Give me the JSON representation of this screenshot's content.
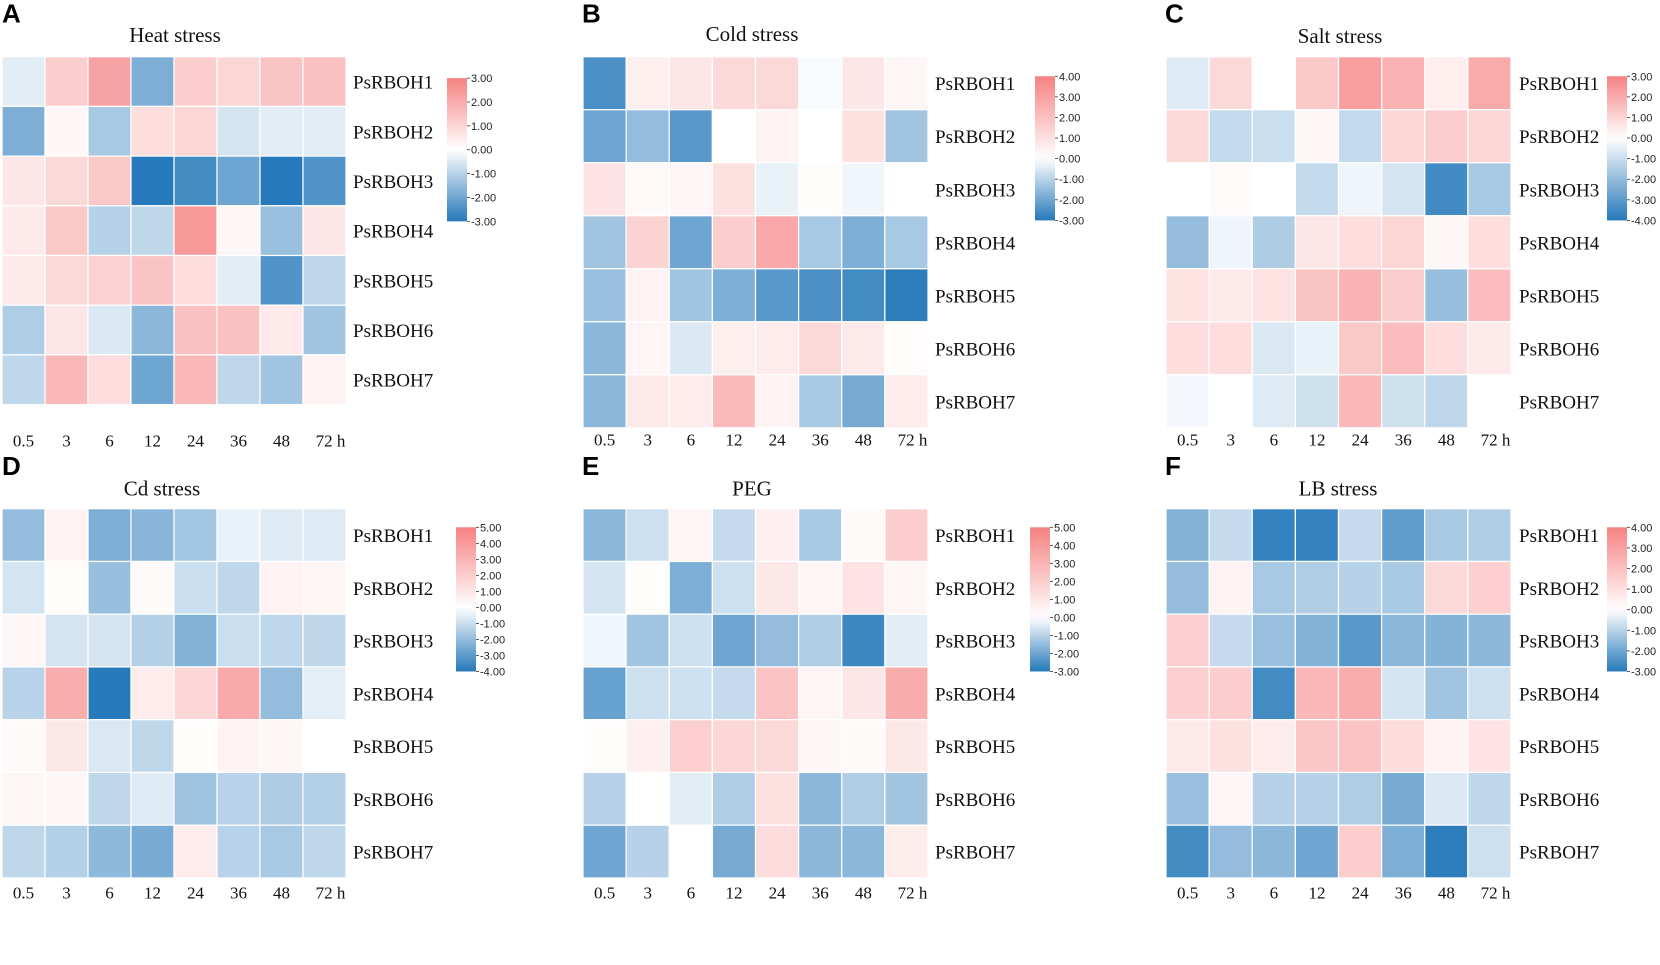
{
  "chart_data": [
    {
      "type": "heatmap",
      "letter": "A",
      "title": "Heat stress",
      "rows": [
        "PsRBOH1",
        "PsRBOH2",
        "PsRBOH3",
        "PsRBOH4",
        "PsRBOH5",
        "PsRBOH6",
        "PsRBOH7"
      ],
      "columns": [
        "0.5",
        "3",
        "6",
        "12",
        "24",
        "36",
        "48",
        "72 h"
      ],
      "legend_ticks": [
        "3.00",
        "2.00",
        "1.00",
        "0.00",
        "-1.00",
        "-2.00",
        "-3.00"
      ],
      "scale_min": -3,
      "scale_max": 3,
      "values": [
        [
          -0.4,
          1.2,
          2.2,
          -1.8,
          1.2,
          1.0,
          1.4,
          1.5
        ],
        [
          -1.8,
          0.2,
          -1.2,
          0.8,
          1.0,
          -0.6,
          -0.4,
          -0.4
        ],
        [
          0.6,
          0.9,
          1.3,
          -3.0,
          -2.6,
          -2.0,
          -3.0,
          -2.4
        ],
        [
          0.5,
          1.3,
          -1.0,
          -0.9,
          2.4,
          0.2,
          -1.4,
          0.6
        ],
        [
          0.5,
          0.9,
          1.1,
          1.4,
          0.8,
          -0.4,
          -2.4,
          -0.9
        ],
        [
          -1.1,
          0.6,
          -0.5,
          -1.6,
          1.5,
          1.5,
          0.5,
          -1.3
        ],
        [
          -0.9,
          1.7,
          0.8,
          -2.0,
          1.7,
          -0.9,
          -1.3,
          0.3
        ]
      ]
    },
    {
      "type": "heatmap",
      "letter": "B",
      "title": "Cold stress",
      "rows": [
        "PsRBOH1",
        "PsRBOH2",
        "PsRBOH3",
        "PsRBOH4",
        "PsRBOH5",
        "PsRBOH6",
        "PsRBOH7"
      ],
      "columns": [
        "0.5",
        "3",
        "6",
        "12",
        "24",
        "36",
        "48",
        "72 h"
      ],
      "legend_ticks": [
        "4.00",
        "3.00",
        "2.00",
        "1.00",
        "0.00",
        "-1.00",
        "-2.00",
        "-3.00"
      ],
      "scale_min": -3,
      "scale_max": 4,
      "values": [
        [
          -2.5,
          0.5,
          0.8,
          1.2,
          1.2,
          -0.1,
          0.8,
          0.3
        ],
        [
          -2.0,
          -1.5,
          -2.3,
          0.0,
          0.4,
          0.0,
          1.0,
          -1.3
        ],
        [
          0.9,
          0.2,
          0.3,
          1.0,
          -0.3,
          0.1,
          -0.2,
          0.0
        ],
        [
          -1.3,
          1.4,
          -2.0,
          1.6,
          2.8,
          -1.2,
          -1.8,
          -1.2
        ],
        [
          -1.4,
          0.4,
          -1.3,
          -1.8,
          -2.3,
          -2.5,
          -2.6,
          -2.9
        ],
        [
          -1.6,
          0.3,
          -0.5,
          0.5,
          0.6,
          1.2,
          0.7,
          0.1
        ],
        [
          -1.6,
          0.7,
          0.6,
          2.2,
          0.4,
          -1.2,
          -1.9,
          0.6
        ]
      ]
    },
    {
      "type": "heatmap",
      "letter": "C",
      "title": "Salt stress",
      "rows": [
        "PsRBOH1",
        "PsRBOH2",
        "PsRBOH3",
        "PsRBOH4",
        "PsRBOH5",
        "PsRBOH6",
        "PsRBOH7"
      ],
      "columns": [
        "0.5",
        "3",
        "6",
        "12",
        "24",
        "36",
        "48",
        "72 h"
      ],
      "legend_ticks": [
        "3.00",
        "2.00",
        "1.00",
        "0.00",
        "-1.00",
        "-2.00",
        "-3.00",
        "-4.00"
      ],
      "scale_min": -4,
      "scale_max": 3,
      "values": [
        [
          -0.6,
          0.9,
          0.0,
          1.3,
          2.3,
          1.8,
          0.4,
          2.0
        ],
        [
          0.9,
          -1.1,
          -1.0,
          0.2,
          -1.1,
          1.0,
          1.2,
          1.0
        ],
        [
          0.0,
          0.1,
          0.0,
          -1.1,
          -0.3,
          -0.8,
          -3.5,
          -1.6
        ],
        [
          -2.0,
          -0.3,
          -1.5,
          0.6,
          0.8,
          1.0,
          0.2,
          0.8
        ],
        [
          0.7,
          0.5,
          0.7,
          1.4,
          1.8,
          1.2,
          -1.9,
          1.6
        ],
        [
          0.8,
          0.8,
          -0.7,
          -0.4,
          1.3,
          1.6,
          0.8,
          0.5
        ],
        [
          -0.2,
          0.0,
          -0.6,
          -0.9,
          1.7,
          -0.9,
          -1.2,
          0.0
        ]
      ]
    },
    {
      "type": "heatmap",
      "letter": "D",
      "title": "Cd stress",
      "rows": [
        "PsRBOH1",
        "PsRBOH2",
        "PsRBOH3",
        "PsRBOH4",
        "PsRBOH5",
        "PsRBOH6",
        "PsRBOH7"
      ],
      "columns": [
        "0.5",
        "3",
        "6",
        "12",
        "24",
        "36",
        "48",
        "72 h"
      ],
      "legend_ticks": [
        "5.00",
        "4.00",
        "3.00",
        "2.00",
        "1.00",
        "0.00",
        "-1.00",
        "-2.00",
        "-3.00",
        "-4.00"
      ],
      "scale_min": -4,
      "scale_max": 5,
      "values": [
        [
          -2.0,
          0.5,
          -2.4,
          -2.2,
          -1.7,
          -0.4,
          -0.6,
          -0.6
        ],
        [
          -0.8,
          0.1,
          -1.9,
          0.2,
          -1.0,
          -1.2,
          0.5,
          0.4
        ],
        [
          0.3,
          -0.8,
          -0.8,
          -1.4,
          -2.3,
          -1.0,
          -1.2,
          -1.2
        ],
        [
          -1.3,
          3.2,
          -4.0,
          0.8,
          1.6,
          3.4,
          -2.0,
          -0.5
        ],
        [
          0.2,
          0.9,
          -0.7,
          -1.2,
          0.1,
          0.5,
          0.4,
          0.0
        ],
        [
          0.4,
          0.3,
          -1.2,
          -0.6,
          -1.8,
          -1.3,
          -1.5,
          -1.4
        ],
        [
          -1.2,
          -1.4,
          -2.1,
          -2.5,
          0.8,
          -1.3,
          -1.6,
          -1.2
        ]
      ]
    },
    {
      "type": "heatmap",
      "letter": "E",
      "title": "PEG",
      "rows": [
        "PsRBOH1",
        "PsRBOH2",
        "PsRBOH3",
        "PsRBOH4",
        "PsRBOH5",
        "PsRBOH6",
        "PsRBOH7"
      ],
      "columns": [
        "0.5",
        "3",
        "6",
        "12",
        "24",
        "36",
        "48",
        "72 h"
      ],
      "legend_ticks": [
        "5.00",
        "4.00",
        "3.00",
        "2.00",
        "1.00",
        "0.00",
        "-1.00",
        "-2.00",
        "-3.00"
      ],
      "scale_min": -3,
      "scale_max": 5,
      "values": [
        [
          -1.6,
          -0.7,
          0.4,
          -0.8,
          0.6,
          -1.2,
          0.2,
          2.0
        ],
        [
          -0.6,
          0.1,
          -1.8,
          -0.7,
          0.9,
          0.4,
          1.1,
          0.4
        ],
        [
          -0.2,
          -1.3,
          -0.7,
          -2.0,
          -1.5,
          -1.1,
          -2.7,
          -0.4
        ],
        [
          -2.1,
          -0.7,
          -0.7,
          -0.8,
          2.4,
          0.4,
          1.0,
          3.3
        ],
        [
          0.1,
          0.6,
          1.9,
          1.6,
          1.5,
          0.3,
          0.2,
          0.9
        ],
        [
          -1.0,
          0.0,
          -0.4,
          -1.1,
          1.2,
          -1.6,
          -1.1,
          -1.3
        ],
        [
          -2.0,
          -1.0,
          0.0,
          -1.9,
          1.4,
          -1.6,
          -1.6,
          0.7
        ]
      ]
    },
    {
      "type": "heatmap",
      "letter": "F",
      "title": "LB stress",
      "rows": [
        "PsRBOH1",
        "PsRBOH2",
        "PsRBOH3",
        "PsRBOH4",
        "PsRBOH5",
        "PsRBOH6",
        "PsRBOH7"
      ],
      "columns": [
        "0.5",
        "3",
        "6",
        "12",
        "24",
        "36",
        "48",
        "72 h"
      ],
      "legend_ticks": [
        "4.00",
        "3.00",
        "2.00",
        "1.00",
        "0.00",
        "-1.00",
        "-2.00",
        "-3.00"
      ],
      "scale_min": -3,
      "scale_max": 4,
      "values": [
        [
          -1.7,
          -0.8,
          -2.8,
          -2.8,
          -0.8,
          -2.2,
          -1.2,
          -1.1
        ],
        [
          -1.5,
          0.4,
          -1.2,
          -1.1,
          -1.0,
          -1.2,
          1.2,
          1.5
        ],
        [
          1.5,
          -0.8,
          -1.4,
          -1.7,
          -2.3,
          -1.6,
          -1.7,
          -1.6
        ],
        [
          1.5,
          1.6,
          -2.6,
          2.3,
          2.6,
          -0.6,
          -1.3,
          -0.7
        ],
        [
          0.7,
          1.0,
          0.6,
          1.8,
          1.9,
          1.1,
          0.4,
          0.9
        ],
        [
          -1.4,
          0.3,
          -1.0,
          -1.0,
          -1.1,
          -1.9,
          -0.5,
          -0.9
        ],
        [
          -2.6,
          -1.5,
          -1.6,
          -2.0,
          1.6,
          -1.8,
          -2.9,
          -0.7
        ]
      ]
    }
  ]
}
